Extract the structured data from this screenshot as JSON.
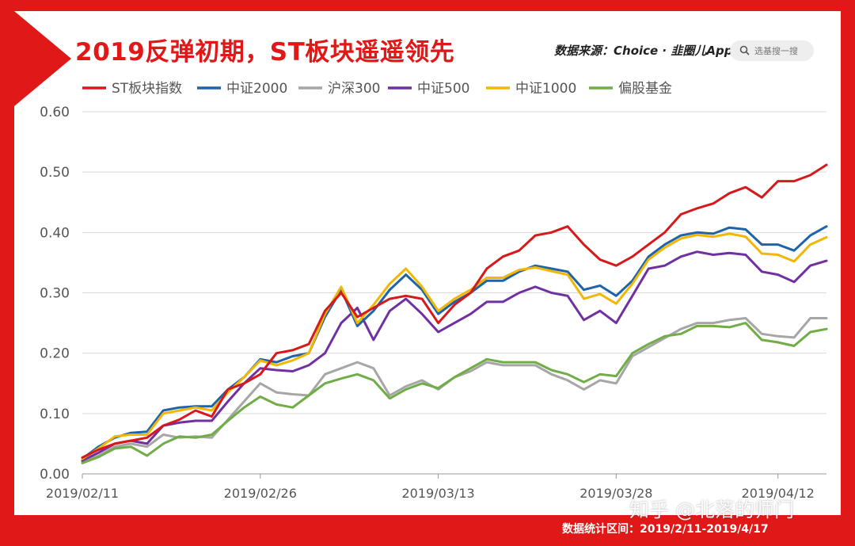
{
  "header": {
    "title": "2019反弹初期，ST板块遥遥领先",
    "source": "数据来源：Choice · 韭圈儿App",
    "search_placeholder": "选基搜一搜"
  },
  "footer": {
    "stats_period": "数据统计区间：2019/2/11-2019/4/17",
    "watermark": "知乎 @北落的师门"
  },
  "colors": {
    "frame": "#e01818",
    "st": "#d7191c",
    "csi2000": "#1f63a8",
    "hs300": "#a6a6a6",
    "csi500": "#7030a0",
    "csi1000": "#f2b705",
    "fund": "#70ad47"
  },
  "chart_data": {
    "type": "line",
    "title": "2019反弹初期，ST板块遥遥领先",
    "xlabel": "",
    "ylabel": "",
    "ylim": [
      0,
      0.6
    ],
    "yticks": [
      "0.00",
      "0.10",
      "0.20",
      "0.30",
      "0.40",
      "0.50",
      "0.60"
    ],
    "xticks": [
      "2019/02/11",
      "2019/02/26",
      "2019/03/13",
      "2019/03/28",
      "2019/04/12"
    ],
    "grid": true,
    "legend_position": "top",
    "x": [
      "2019/02/11",
      "2019/02/12",
      "2019/02/13",
      "2019/02/14",
      "2019/02/15",
      "2019/02/18",
      "2019/02/19",
      "2019/02/20",
      "2019/02/21",
      "2019/02/22",
      "2019/02/25",
      "2019/02/26",
      "2019/02/27",
      "2019/02/28",
      "2019/03/01",
      "2019/03/04",
      "2019/03/05",
      "2019/03/06",
      "2019/03/07",
      "2019/03/08",
      "2019/03/11",
      "2019/03/12",
      "2019/03/13",
      "2019/03/14",
      "2019/03/15",
      "2019/03/18",
      "2019/03/19",
      "2019/03/20",
      "2019/03/21",
      "2019/03/22",
      "2019/03/25",
      "2019/03/26",
      "2019/03/27",
      "2019/03/28",
      "2019/03/29",
      "2019/04/01",
      "2019/04/02",
      "2019/04/03",
      "2019/04/04",
      "2019/04/08",
      "2019/04/09",
      "2019/04/10",
      "2019/04/11",
      "2019/04/12",
      "2019/04/15",
      "2019/04/16",
      "2019/04/17"
    ],
    "series": [
      {
        "name": "ST板块指数",
        "color": "#d7191c",
        "values": [
          0.027,
          0.04,
          0.05,
          0.055,
          0.06,
          0.08,
          0.09,
          0.105,
          0.095,
          0.14,
          0.15,
          0.165,
          0.2,
          0.205,
          0.215,
          0.27,
          0.3,
          0.26,
          0.275,
          0.29,
          0.295,
          0.29,
          0.25,
          0.28,
          0.3,
          0.34,
          0.36,
          0.37,
          0.395,
          0.4,
          0.41,
          0.38,
          0.355,
          0.345,
          0.36,
          0.38,
          0.4,
          0.43,
          0.44,
          0.448,
          0.465,
          0.475,
          0.458,
          0.485,
          0.485,
          0.495,
          0.512
        ]
      },
      {
        "name": "中证2000",
        "color": "#1f63a8",
        "values": [
          0.025,
          0.045,
          0.06,
          0.068,
          0.07,
          0.105,
          0.11,
          0.112,
          0.112,
          0.14,
          0.16,
          0.19,
          0.185,
          0.195,
          0.2,
          0.26,
          0.305,
          0.245,
          0.27,
          0.305,
          0.33,
          0.305,
          0.265,
          0.285,
          0.3,
          0.32,
          0.32,
          0.335,
          0.345,
          0.34,
          0.335,
          0.305,
          0.312,
          0.295,
          0.32,
          0.36,
          0.38,
          0.395,
          0.4,
          0.398,
          0.408,
          0.405,
          0.38,
          0.38,
          0.37,
          0.395,
          0.41
        ]
      },
      {
        "name": "沪深300",
        "color": "#a6a6a6",
        "values": [
          0.02,
          0.03,
          0.045,
          0.05,
          0.045,
          0.065,
          0.06,
          0.062,
          0.06,
          0.09,
          0.12,
          0.15,
          0.135,
          0.132,
          0.13,
          0.165,
          0.175,
          0.185,
          0.175,
          0.13,
          0.145,
          0.155,
          0.14,
          0.16,
          0.17,
          0.185,
          0.18,
          0.18,
          0.18,
          0.165,
          0.155,
          0.14,
          0.155,
          0.15,
          0.195,
          0.21,
          0.225,
          0.24,
          0.25,
          0.25,
          0.255,
          0.258,
          0.232,
          0.228,
          0.226,
          0.258,
          0.258
        ]
      },
      {
        "name": "中证500",
        "color": "#7030a0",
        "values": [
          0.022,
          0.035,
          0.05,
          0.055,
          0.05,
          0.08,
          0.085,
          0.088,
          0.088,
          0.12,
          0.15,
          0.175,
          0.172,
          0.17,
          0.18,
          0.2,
          0.25,
          0.275,
          0.222,
          0.27,
          0.29,
          0.265,
          0.235,
          0.25,
          0.265,
          0.285,
          0.285,
          0.3,
          0.31,
          0.3,
          0.295,
          0.255,
          0.27,
          0.25,
          0.295,
          0.34,
          0.345,
          0.36,
          0.368,
          0.363,
          0.366,
          0.363,
          0.335,
          0.33,
          0.318,
          0.345,
          0.353
        ]
      },
      {
        "name": "中证1000",
        "color": "#f2b705",
        "values": [
          0.025,
          0.042,
          0.062,
          0.065,
          0.065,
          0.1,
          0.105,
          0.11,
          0.105,
          0.135,
          0.16,
          0.188,
          0.18,
          0.188,
          0.2,
          0.265,
          0.31,
          0.25,
          0.28,
          0.315,
          0.34,
          0.31,
          0.27,
          0.29,
          0.305,
          0.325,
          0.325,
          0.338,
          0.342,
          0.336,
          0.33,
          0.29,
          0.298,
          0.282,
          0.315,
          0.355,
          0.375,
          0.39,
          0.396,
          0.393,
          0.398,
          0.393,
          0.365,
          0.363,
          0.352,
          0.38,
          0.392
        ]
      },
      {
        "name": "偏股基金",
        "color": "#70ad47",
        "values": [
          0.018,
          0.028,
          0.042,
          0.045,
          0.03,
          0.05,
          0.062,
          0.06,
          0.065,
          0.088,
          0.11,
          0.128,
          0.115,
          0.11,
          0.13,
          0.15,
          0.158,
          0.165,
          0.155,
          0.125,
          0.14,
          0.15,
          0.142,
          0.16,
          0.175,
          0.19,
          0.185,
          0.185,
          0.185,
          0.172,
          0.165,
          0.152,
          0.165,
          0.162,
          0.2,
          0.215,
          0.228,
          0.232,
          0.245,
          0.245,
          0.243,
          0.25,
          0.222,
          0.218,
          0.212,
          0.235,
          0.24
        ]
      }
    ]
  }
}
